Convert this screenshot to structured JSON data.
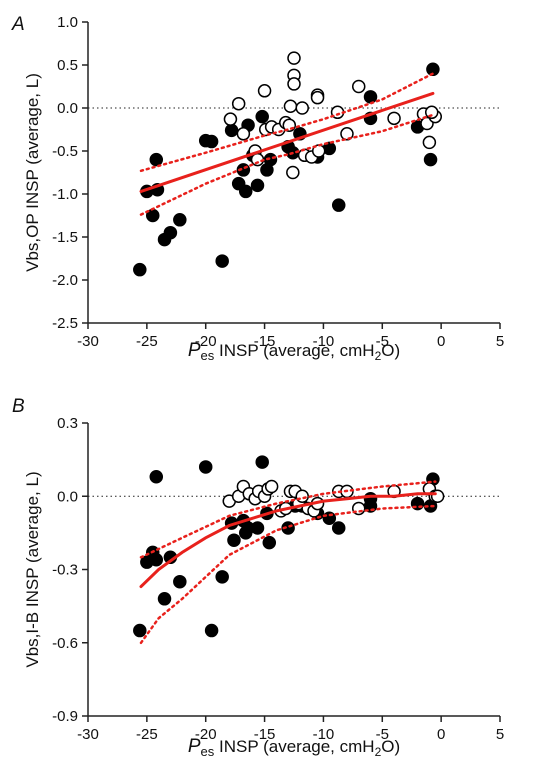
{
  "chart_data": [
    {
      "type": "scatter",
      "panel": "A",
      "ylabel": "Vbs,OP INSP (average, L)",
      "xlabel_parts": [
        "P",
        "es",
        " INSP (average, cmH",
        "2",
        "O)"
      ],
      "xlim": [
        -30,
        5
      ],
      "xticks": [
        -30,
        -25,
        -20,
        -15,
        -10,
        -5,
        0,
        5
      ],
      "ylim": [
        -2.5,
        1.0
      ],
      "yticks": [
        -2.5,
        {
          "value": -2,
          "label": "-2.0"
        },
        -1.5,
        {
          "value": -1,
          "label": "-1.0"
        },
        -0.5,
        {
          "value": 0,
          "label": "0.0"
        },
        0.5,
        {
          "value": 1,
          "label": "1.0"
        }
      ],
      "reference_line": 0,
      "series": [
        {
          "marker": "filled",
          "color": "#000000",
          "x": [
            -25.6,
            -25.0,
            -24.5,
            -24.2,
            -24.1,
            -23.5,
            -23.0,
            -22.2,
            -20.0,
            -19.5,
            -18.6,
            -17.8,
            -17.2,
            -16.8,
            -16.6,
            -16.4,
            -16.0,
            -15.6,
            -15.2,
            -14.8,
            -14.5,
            -13.0,
            -12.6,
            -12.0,
            -10.5,
            -9.5,
            -8.7,
            -6.0,
            -6.0,
            -2.0,
            -0.9,
            -0.7
          ],
          "values": [
            -1.88,
            -0.97,
            -1.25,
            -0.6,
            -0.95,
            -1.53,
            -1.45,
            -1.3,
            -0.38,
            -0.39,
            -1.78,
            -0.26,
            -0.88,
            -0.72,
            -0.97,
            -0.2,
            -0.55,
            -0.9,
            -0.1,
            -0.72,
            -0.6,
            -0.45,
            -0.52,
            -0.3,
            -0.57,
            -0.47,
            -1.13,
            0.13,
            -0.12,
            -0.22,
            -0.6,
            0.45
          ]
        },
        {
          "marker": "open",
          "color": "#000000",
          "x": [
            -17.9,
            -17.2,
            -16.8,
            -15.8,
            -15.6,
            -15.0,
            -14.9,
            -14.4,
            -13.8,
            -13.2,
            -12.9,
            -12.8,
            -12.6,
            -12.5,
            -12.5,
            -12.5,
            -11.8,
            -11.6,
            -11.0,
            -10.5,
            -10.5,
            -10.4,
            -8.8,
            -8.0,
            -7.0,
            -4.0,
            -1.5,
            -1.2,
            -1.0,
            -0.5,
            -0.8
          ],
          "values": [
            -0.13,
            0.05,
            -0.3,
            -0.5,
            -0.6,
            0.2,
            -0.25,
            -0.22,
            -0.25,
            -0.17,
            -0.2,
            0.02,
            -0.75,
            0.38,
            0.28,
            0.58,
            0.0,
            -0.55,
            -0.57,
            0.15,
            0.12,
            -0.5,
            -0.05,
            -0.3,
            0.25,
            -0.12,
            -0.07,
            -0.18,
            -0.4,
            -0.1,
            -0.05
          ]
        },
        {
          "line": "solid",
          "color": "#e8211c",
          "x": [
            -25.5,
            -0.7
          ],
          "values": [
            -0.97,
            0.17
          ]
        },
        {
          "line": "dotted",
          "color": "#e8211c",
          "x": [
            -25.5,
            -20,
            -15,
            -13,
            -10,
            -5,
            -0.7
          ],
          "values": [
            -0.73,
            -0.52,
            -0.32,
            -0.25,
            -0.13,
            0.1,
            0.4
          ]
        },
        {
          "line": "dotted",
          "color": "#e8211c",
          "x": [
            -25.5,
            -20,
            -15,
            -13,
            -10,
            -5,
            -0.7
          ],
          "values": [
            -1.24,
            -0.88,
            -0.6,
            -0.54,
            -0.42,
            -0.27,
            -0.08
          ]
        }
      ]
    },
    {
      "type": "scatter",
      "panel": "B",
      "ylabel": "Vbs,I-B INSP (average, L)",
      "xlabel_parts": [
        "P",
        "es",
        " INSP (average, cmH",
        "2",
        "O)"
      ],
      "xlim": [
        -30,
        5
      ],
      "xticks": [
        -30,
        -25,
        -20,
        -15,
        -10,
        -5,
        0,
        5
      ],
      "ylim": [
        -0.9,
        0.3
      ],
      "yticks": [
        -0.9,
        -0.6,
        -0.3,
        {
          "value": 0,
          "label": "0.0"
        },
        0.3
      ],
      "reference_line": 0,
      "series": [
        {
          "marker": "filled",
          "color": "#000000",
          "x": [
            -25.6,
            -25.0,
            -24.5,
            -24.2,
            -24.2,
            -23.5,
            -23.0,
            -22.2,
            -20.0,
            -19.5,
            -18.6,
            -17.8,
            -17.6,
            -16.8,
            -16.6,
            -16.4,
            -15.6,
            -15.2,
            -14.8,
            -14.6,
            -13.0,
            -12.4,
            -11.8,
            -10.5,
            -9.5,
            -8.7,
            -6.0,
            -6.0,
            -2.0,
            -0.9,
            -0.7
          ],
          "values": [
            -0.55,
            -0.27,
            -0.23,
            0.08,
            -0.26,
            -0.42,
            -0.25,
            -0.35,
            0.12,
            -0.55,
            -0.33,
            -0.11,
            -0.18,
            -0.1,
            -0.15,
            -0.13,
            -0.13,
            0.14,
            -0.07,
            -0.19,
            -0.13,
            -0.04,
            -0.04,
            -0.07,
            -0.09,
            -0.13,
            -0.01,
            -0.04,
            -0.03,
            -0.04,
            0.07
          ]
        },
        {
          "marker": "open",
          "color": "#000000",
          "x": [
            -18.0,
            -17.2,
            -16.8,
            -16.3,
            -15.8,
            -15.5,
            -15.0,
            -14.7,
            -14.4,
            -13.6,
            -13.2,
            -12.8,
            -12.4,
            -12.1,
            -11.8,
            -11.3,
            -10.8,
            -10.5,
            -8.7,
            -8.0,
            -7.0,
            -4.0,
            -1.0,
            -0.5,
            -0.3
          ],
          "values": [
            -0.02,
            0.0,
            0.04,
            0.01,
            -0.01,
            0.02,
            0.0,
            0.03,
            0.04,
            -0.06,
            -0.05,
            0.02,
            0.02,
            -0.03,
            0.0,
            -0.05,
            -0.06,
            -0.03,
            0.02,
            0.02,
            -0.05,
            0.02,
            0.03,
            0.0,
            0.0
          ]
        },
        {
          "line": "solid",
          "color": "#e8211c",
          "x": [
            -25.5,
            -24,
            -22,
            -20,
            -18,
            -16,
            -14,
            -12,
            -10,
            -8,
            -6,
            -4,
            -2,
            -0.5
          ],
          "values": [
            -0.37,
            -0.3,
            -0.23,
            -0.17,
            -0.12,
            -0.09,
            -0.06,
            -0.04,
            -0.02,
            -0.01,
            0.0,
            0.0,
            0.01,
            0.01
          ]
        },
        {
          "line": "dotted",
          "color": "#e8211c",
          "x": [
            -25.5,
            -22,
            -18,
            -14,
            -10,
            -5,
            -0.5
          ],
          "values": [
            -0.25,
            -0.17,
            -0.08,
            -0.03,
            0.01,
            0.04,
            0.06
          ]
        },
        {
          "line": "dotted",
          "color": "#e8211c",
          "x": [
            -25.5,
            -24,
            -22,
            -18,
            -14,
            -10,
            -5,
            -0.5
          ],
          "values": [
            -0.6,
            -0.5,
            -0.42,
            -0.24,
            -0.14,
            -0.08,
            -0.05,
            -0.04
          ]
        }
      ]
    }
  ]
}
